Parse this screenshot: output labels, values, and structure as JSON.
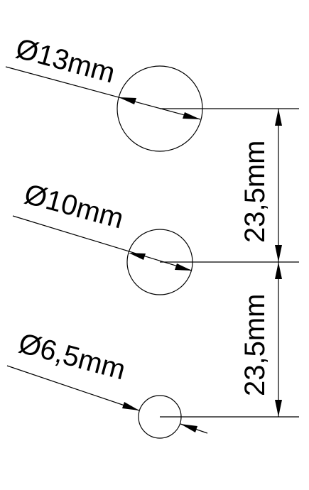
{
  "drawing": {
    "line_color": "#000000",
    "background": "#ffffff",
    "holes": [
      {
        "label": "Ø13mm"
      },
      {
        "label": "Ø10mm"
      },
      {
        "label": "Ø6,5mm"
      }
    ],
    "spacings": [
      {
        "label": "23,5mm"
      },
      {
        "label": "23,5mm"
      }
    ]
  }
}
